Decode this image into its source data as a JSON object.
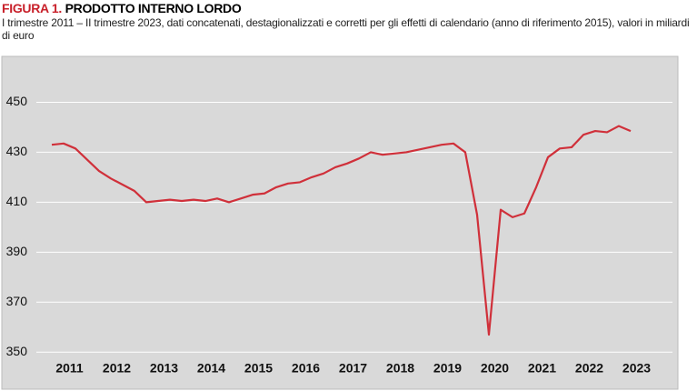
{
  "chart_data": {
    "type": "line",
    "title_label": "FIGURA 1.",
    "title": "PRODOTTO INTERNO LORDO",
    "subtitle": "I trimestre 2011 – II trimestre 2023, dati concatenati, destagionalizzati e corretti per gli effetti di calendario (anno di riferimento 2015), valori in miliardi di euro",
    "categories": [
      "2011",
      null,
      null,
      null,
      "2012",
      null,
      null,
      null,
      "2013",
      null,
      null,
      null,
      "2014",
      null,
      null,
      null,
      "2015",
      null,
      null,
      null,
      "2016",
      null,
      null,
      null,
      "2017",
      null,
      null,
      null,
      "2018",
      null,
      null,
      null,
      "2019",
      null,
      null,
      null,
      "2020",
      null,
      null,
      null,
      "2021",
      null,
      null,
      null,
      "2022",
      null,
      null,
      null,
      "2023",
      null
    ],
    "series": [
      {
        "color": "#d0303a",
        "values": [
          433,
          433.5,
          431.5,
          427,
          422.5,
          419.5,
          417,
          414.5,
          410,
          410.5,
          411,
          410.5,
          411,
          410.5,
          411.5,
          410,
          411.5,
          413,
          413.5,
          416,
          417.5,
          418,
          420,
          421.5,
          424,
          425.5,
          427.5,
          430,
          429,
          429.5,
          430,
          431,
          432,
          433,
          433.5,
          430,
          405,
          357,
          407,
          404,
          405.5,
          416,
          428,
          431.5,
          432,
          437,
          438.5,
          438,
          440.5,
          438.5
        ]
      }
    ],
    "ylim": [
      345,
      460
    ],
    "yticks": [
      350,
      370,
      390,
      410,
      430,
      450
    ],
    "grid": true
  }
}
